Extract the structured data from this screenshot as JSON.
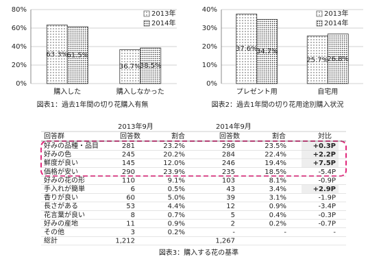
{
  "chart_data": [
    {
      "type": "bar",
      "caption": "図表1：過去1年間の切り花購入有無",
      "categories": [
        "購入した",
        "購入しなかった"
      ],
      "series": [
        {
          "name": "2013年",
          "color": "#444444",
          "values": [
            63.3,
            36.7
          ],
          "value_labels": [
            "63.3%",
            "36.7%"
          ]
        },
        {
          "name": "2014年",
          "color": "#222222",
          "values": [
            61.5,
            38.5
          ],
          "value_labels": [
            "61.5%",
            "38.5%"
          ]
        }
      ],
      "ylim": [
        0,
        80
      ],
      "yticks": [
        {
          "value": 0,
          "label": "0%"
        },
        {
          "value": 20,
          "label": "20%"
        },
        {
          "value": 40,
          "label": "40%"
        },
        {
          "value": 60,
          "label": "60%"
        },
        {
          "value": 80,
          "label": "80%"
        }
      ]
    },
    {
      "type": "bar",
      "caption": "図表2：過去1年間の切り花用途別購入状況",
      "categories": [
        "プレゼント用",
        "自宅用"
      ],
      "series": [
        {
          "name": "2013年",
          "color": "#444444",
          "values": [
            37.6,
            25.7
          ],
          "value_labels": [
            "37.6%",
            "25.7%"
          ]
        },
        {
          "name": "2014年",
          "color": "#222222",
          "values": [
            34.7,
            26.8
          ],
          "value_labels": [
            "34.7%",
            "26.8%"
          ]
        }
      ],
      "ylim": [
        0,
        40
      ],
      "yticks": [
        {
          "value": 0,
          "label": "0%"
        },
        {
          "value": 10,
          "label": "10%"
        },
        {
          "value": 20,
          "label": "20%"
        },
        {
          "value": 30,
          "label": "30%"
        },
        {
          "value": 40,
          "label": "40%"
        }
      ]
    }
  ],
  "table": {
    "caption": "図表3：購入する花の基準",
    "header": [
      [
        "2013年9月",
        "2014年9月"
      ],
      [
        "回答群",
        "回答数",
        "割合",
        "回答数",
        "割合",
        "対比"
      ]
    ],
    "rows": [
      [
        "好みの品種・品目",
        "281",
        "23.2%",
        "298",
        "23.5%",
        "+0.3P"
      ],
      [
        "好みの色",
        "245",
        "20.2%",
        "284",
        "22.4%",
        "+2.2P"
      ],
      [
        "鮮度が良い",
        "145",
        "12.0%",
        "246",
        "19.4%",
        "+7.5P"
      ],
      [
        "価格が安い",
        "290",
        "23.9%",
        "235",
        "18.5%",
        "-5.4P"
      ],
      [
        "好みの花の形",
        "110",
        "9.1%",
        "103",
        "8.1%",
        "-0.9P"
      ],
      [
        "手入れが簡単",
        "6",
        "0.5%",
        "43",
        "3.4%",
        "+2.9P"
      ],
      [
        "香りが良い",
        "60",
        "5.0%",
        "39",
        "3.1%",
        "-1.9P"
      ],
      [
        "長さがある",
        "53",
        "4.4%",
        "12",
        "0.9%",
        "-3.4P"
      ],
      [
        "花言葉が良い",
        "8",
        "0.7%",
        "5",
        "0.4%",
        "-0.3P"
      ],
      [
        "好みの産地",
        "11",
        "0.9%",
        "2",
        "0.2%",
        "-0.7P"
      ],
      [
        "その他",
        "3",
        "0.2%",
        "-",
        "-",
        "-"
      ],
      [
        "総計",
        "1,212",
        null,
        "1,267"
      ]
    ]
  }
}
